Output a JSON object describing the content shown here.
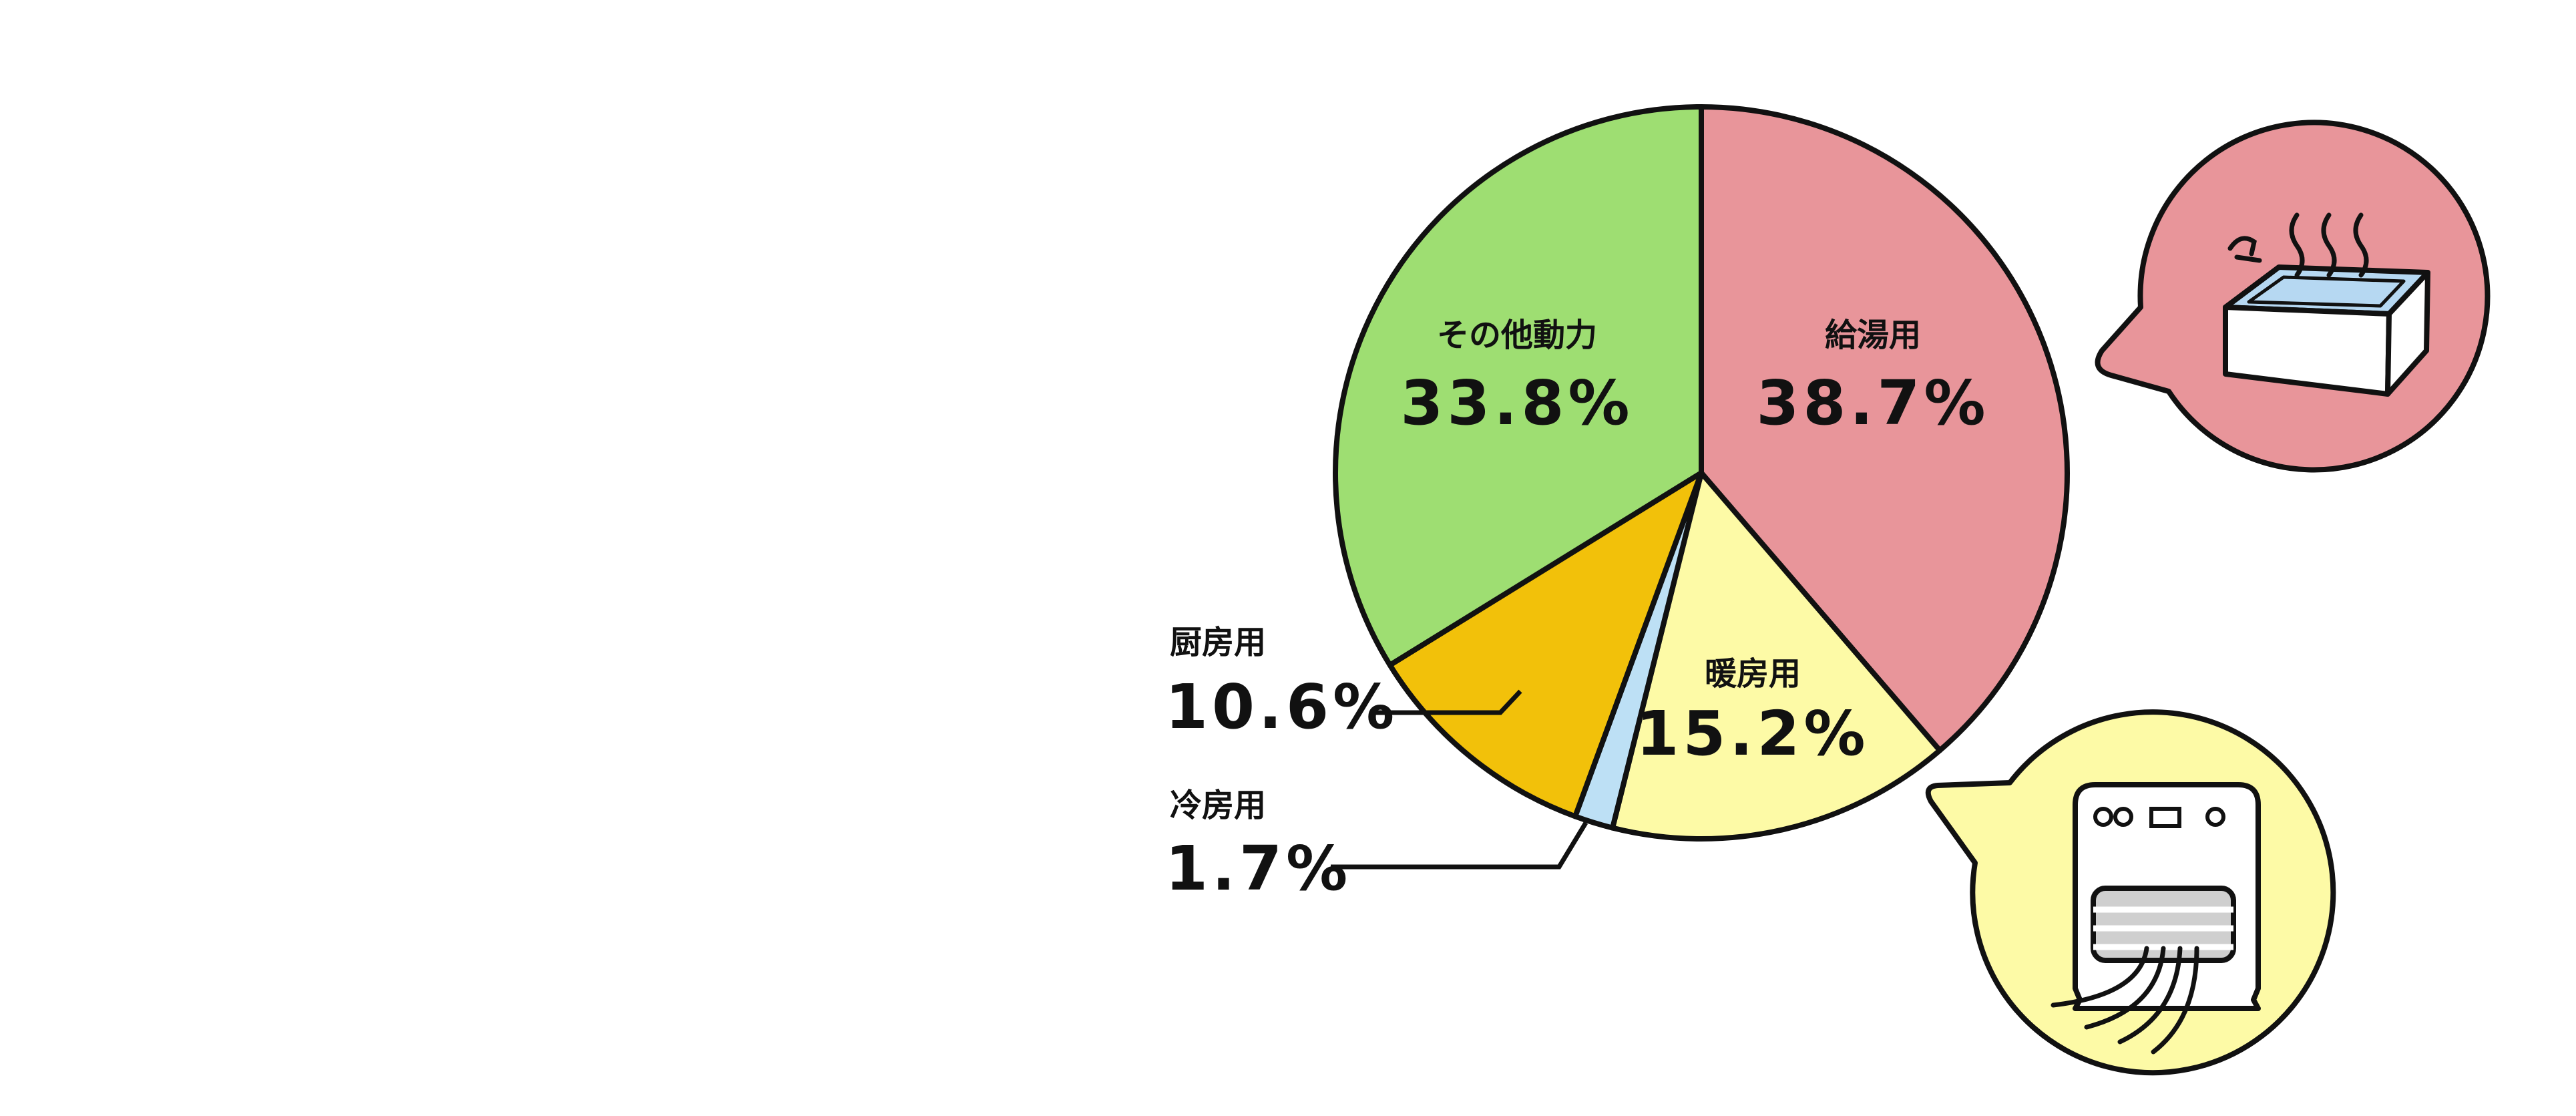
{
  "chart_data": {
    "type": "pie",
    "slices": [
      {
        "label": "給湯用",
        "value": 38.7,
        "value_label": "38.7%",
        "color": "#e8959a"
      },
      {
        "label": "暖房用",
        "value": 15.2,
        "value_label": "15.2%",
        "color": "#fdfaa6"
      },
      {
        "label": "冷房用",
        "value": 1.7,
        "value_label": "1.7%",
        "color": "#bde0f5"
      },
      {
        "label": "厨房用",
        "value": 10.6,
        "value_label": "10.6%",
        "color": "#f2c10a"
      },
      {
        "label": "その他動力",
        "value": 33.8,
        "value_label": "33.8%",
        "color": "#9ede72"
      }
    ],
    "start": "12 o'clock",
    "direction": "clockwise",
    "callouts": [
      {
        "slice": "給湯用",
        "icon": "bathtub-icon",
        "color": "#e8959a"
      },
      {
        "slice": "暖房用",
        "icon": "heater-icon",
        "color": "#fdfaa6"
      }
    ]
  }
}
